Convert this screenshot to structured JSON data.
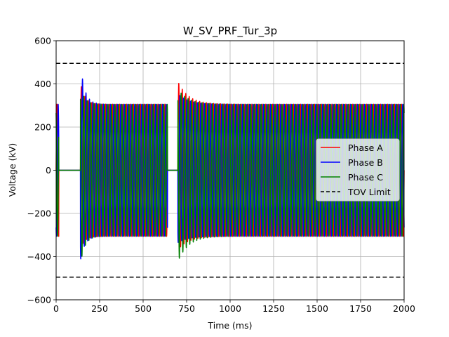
{
  "chart_data": {
    "type": "line",
    "title": "W_SV_PRF_Tur_3p",
    "xlabel": "Time (ms)",
    "ylabel": "Voltage (kV)",
    "xlim": [
      0,
      2000
    ],
    "ylim": [
      -600,
      600
    ],
    "xticks": [
      0,
      250,
      500,
      750,
      1000,
      1250,
      1500,
      1750,
      2000
    ],
    "yticks": [
      -600,
      -400,
      -200,
      0,
      200,
      400,
      600
    ],
    "xtick_labels": [
      "0",
      "250",
      "500",
      "750",
      "1000",
      "1250",
      "1500",
      "1750",
      "2000"
    ],
    "ytick_labels": [
      "−600",
      "−400",
      "−200",
      "0",
      "200",
      "400",
      "600"
    ],
    "grid": true,
    "legend_position": "center-right",
    "steady_amplitude_kv": 306,
    "frequency_hz": 50,
    "dead_intervals_ms": [
      [
        15,
        140
      ],
      [
        640,
        700
      ]
    ],
    "series": [
      {
        "name": "Phase A",
        "color": "#ff0000",
        "phase_deg": 0,
        "transient_peaks_kv": [
          385,
          390
        ]
      },
      {
        "name": "Phase B",
        "color": "#0000ff",
        "phase_deg": -120,
        "transient_peaks_kv": [
          455,
          345
        ]
      },
      {
        "name": "Phase C",
        "color": "#008000",
        "phase_deg": 120,
        "transient_peaks_kv": [
          -410,
          -400
        ]
      }
    ],
    "reference_lines": [
      {
        "name": "TOV Limit",
        "y": 495,
        "style": "dashed",
        "color": "#000000"
      },
      {
        "name": "",
        "y": -495,
        "style": "dashed",
        "color": "#000000"
      }
    ]
  }
}
